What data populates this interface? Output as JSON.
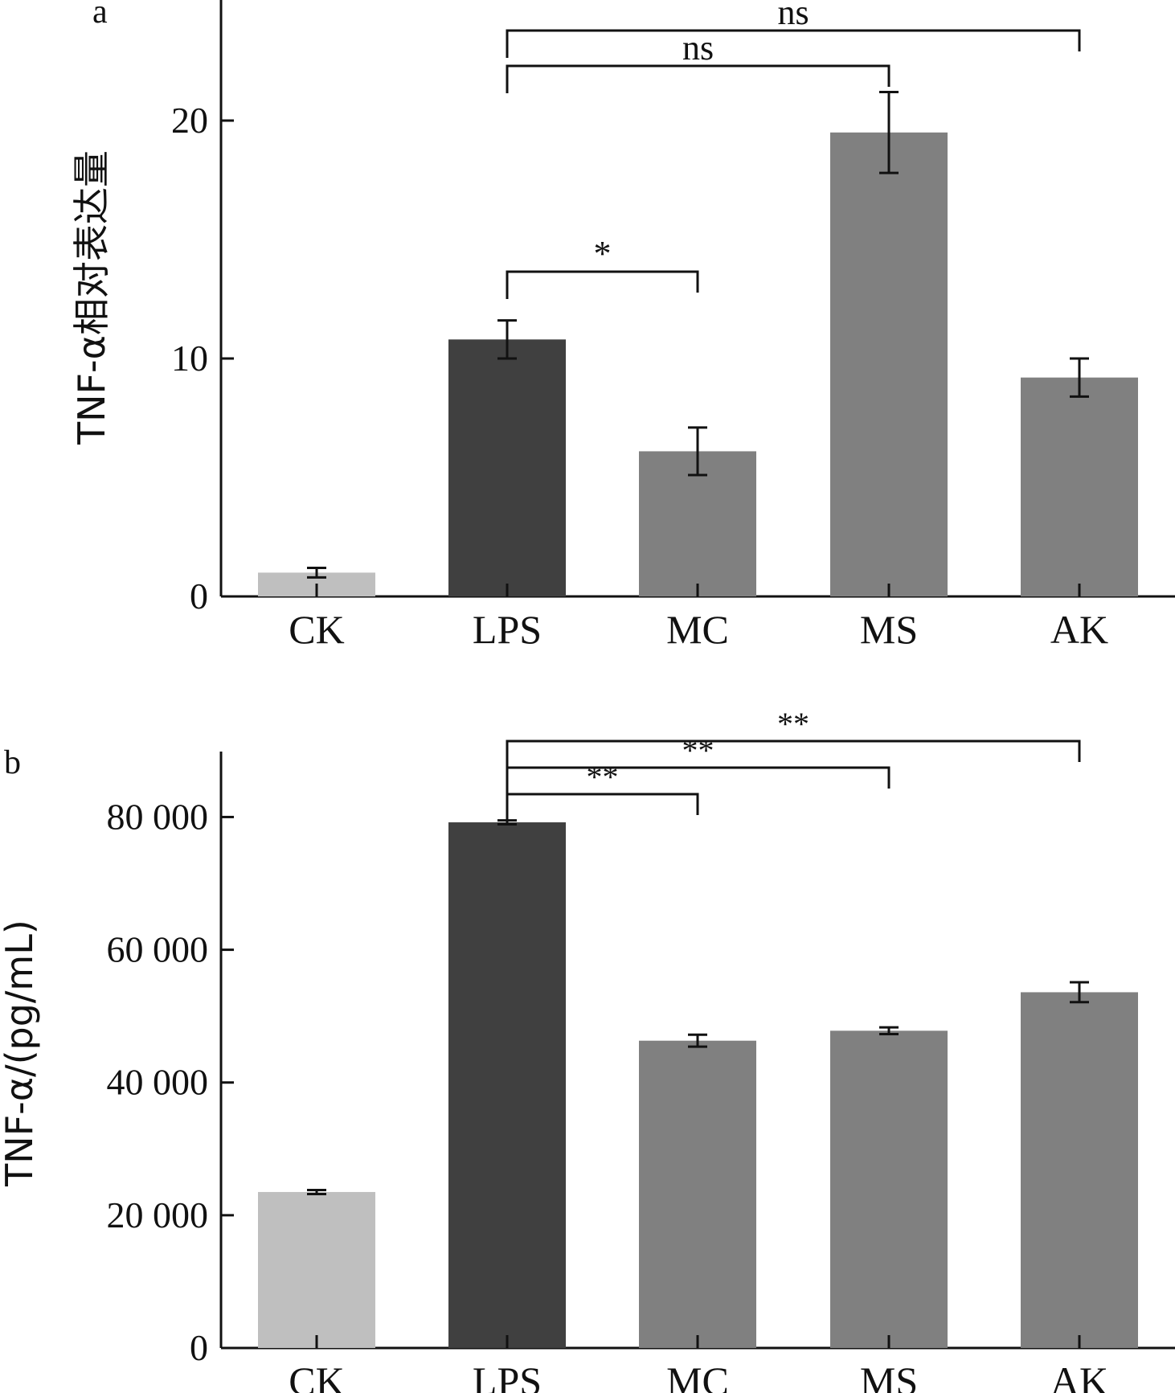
{
  "chart_data": [
    {
      "type": "bar",
      "panel_label": "a",
      "categories": [
        "CK",
        "LPS",
        "MC",
        "MS",
        "AK"
      ],
      "values": [
        1.0,
        10.8,
        6.1,
        19.5,
        9.2
      ],
      "errors": [
        0.2,
        0.8,
        1.0,
        1.7,
        0.8
      ],
      "colors": [
        "#bfbfbf",
        "#404040",
        "#808080",
        "#808080",
        "#808080"
      ],
      "ylabel": "TNF-α相对表达量",
      "ylim": [
        0,
        25
      ],
      "yticks": [
        0,
        10,
        20
      ],
      "ytick_labels": [
        "0",
        "10",
        "20"
      ],
      "grid": false,
      "significance": [
        {
          "from": 1,
          "to": 2,
          "label": "*"
        },
        {
          "from": 1,
          "to": 3,
          "label": "ns"
        },
        {
          "from": 1,
          "to": 4,
          "label": "ns"
        }
      ]
    },
    {
      "type": "bar",
      "panel_label": "b",
      "categories": [
        "CK",
        "LPS",
        "MC",
        "MS",
        "AK"
      ],
      "values": [
        23500,
        79200,
        46300,
        47800,
        53600
      ],
      "errors": [
        300,
        300,
        900,
        500,
        1500
      ],
      "colors": [
        "#bfbfbf",
        "#404040",
        "#808080",
        "#808080",
        "#808080"
      ],
      "ylabel": "TNF-α/(pg/mL)",
      "ylim": [
        0,
        90000
      ],
      "yticks": [
        0,
        20000,
        40000,
        60000,
        80000
      ],
      "ytick_labels": [
        "0",
        "20 000",
        "40 000",
        "60 000",
        "80 000"
      ],
      "grid": false,
      "significance": [
        {
          "from": 1,
          "to": 2,
          "label": "**"
        },
        {
          "from": 1,
          "to": 3,
          "label": "**"
        },
        {
          "from": 1,
          "to": 4,
          "label": "**"
        }
      ]
    }
  ]
}
